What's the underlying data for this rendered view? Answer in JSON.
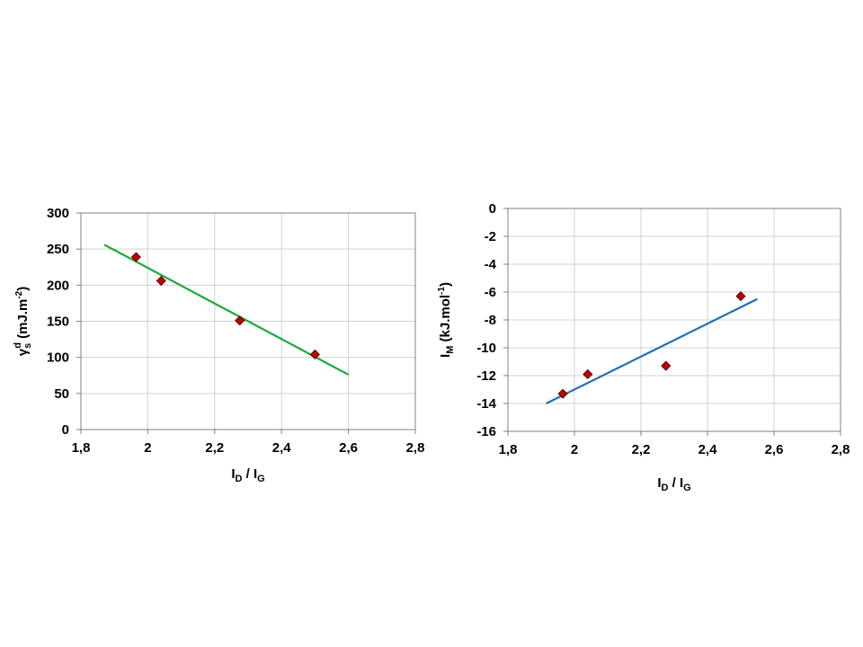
{
  "chart_data": [
    {
      "type": "scatter",
      "xlabel": {
        "main": "I",
        "sub1": "D",
        "mid": " / I",
        "sub2": "G"
      },
      "ylabel": {
        "pre": "γ",
        "sub": "s",
        "sup": "d",
        "post": "  (mJ.m",
        "sup2": "-2",
        "end": ")"
      },
      "xlim": [
        1.8,
        2.8
      ],
      "ylim": [
        0,
        300
      ],
      "xticks": [
        1.8,
        2.0,
        2.2,
        2.4,
        2.6,
        2.8
      ],
      "xtick_labels": [
        "1,8",
        "2",
        "2,2",
        "2,4",
        "2,6",
        "2,8"
      ],
      "yticks": [
        0,
        50,
        100,
        150,
        200,
        250,
        300
      ],
      "ytick_labels": [
        "0",
        "50",
        "100",
        "150",
        "200",
        "250",
        "300"
      ],
      "grid": true,
      "series": [
        {
          "x": [
            1.965,
            2.04,
            2.275,
            2.5
          ],
          "y": [
            239,
            206,
            151,
            104
          ],
          "marker": "diamond",
          "color": "#c00000"
        }
      ],
      "trendline": {
        "x": [
          1.87,
          2.6
        ],
        "y": [
          256,
          76
        ],
        "color": "#1fa83c"
      }
    },
    {
      "type": "scatter",
      "xlabel": {
        "main": "I",
        "sub1": "D",
        "mid": " / I",
        "sub2": "G"
      },
      "ylabel": {
        "pre": "I",
        "sub": "M",
        "sup": "",
        "post": "  (kJ.mol",
        "sup2": "-1",
        "end": ")"
      },
      "xlim": [
        1.8,
        2.8
      ],
      "ylim": [
        -16,
        0
      ],
      "xticks": [
        1.8,
        2.0,
        2.2,
        2.4,
        2.6,
        2.8
      ],
      "xtick_labels": [
        "1,8",
        "2",
        "2,2",
        "2,4",
        "2,6",
        "2,8"
      ],
      "yticks": [
        -16,
        -14,
        -12,
        -10,
        -8,
        -6,
        -4,
        -2,
        0
      ],
      "ytick_labels": [
        "-16",
        "-14",
        "-12",
        "-10",
        "-8",
        "-6",
        "-4",
        "-2",
        "0"
      ],
      "grid": true,
      "series": [
        {
          "x": [
            1.965,
            2.04,
            2.275,
            2.5
          ],
          "y": [
            -13.3,
            -11.9,
            -11.3,
            -6.3
          ],
          "marker": "diamond",
          "color": "#c00000"
        }
      ],
      "trendline": {
        "x": [
          1.915,
          2.55
        ],
        "y": [
          -14.0,
          -6.5
        ],
        "color": "#1f6fb5"
      }
    }
  ]
}
